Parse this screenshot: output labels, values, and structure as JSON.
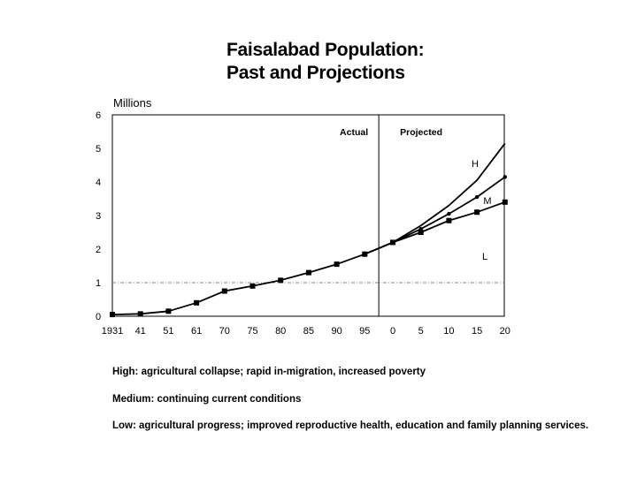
{
  "title_line1": "Faisalabad Population:",
  "title_line2": "Past and Projections",
  "chart_data": {
    "type": "line",
    "title": "Faisalabad Population: Past and Projections",
    "ylabel": "Millions",
    "xlabel": "",
    "ylim": [
      0,
      6
    ],
    "yticks": [
      0,
      1,
      2,
      3,
      4,
      5,
      6
    ],
    "categories": [
      "1931",
      "41",
      "51",
      "61",
      "70",
      "75",
      "80",
      "85",
      "90",
      "95",
      "0",
      "5",
      "10",
      "15",
      "20"
    ],
    "reference_line": 1,
    "divider_after": "95",
    "region_labels": {
      "actual": "Actual",
      "projected": "Projected"
    },
    "series": [
      {
        "name": "Actual",
        "values": [
          0.05,
          0.07,
          0.15,
          0.4,
          0.75,
          0.9,
          1.07,
          1.3,
          1.55,
          1.85,
          null,
          null,
          null,
          null,
          null
        ],
        "markers": "square"
      },
      {
        "name": "H",
        "values": [
          null,
          null,
          null,
          null,
          null,
          null,
          null,
          null,
          null,
          1.85,
          2.2,
          2.7,
          3.3,
          4.05,
          5.15
        ],
        "markers": "none"
      },
      {
        "name": "M",
        "values": [
          null,
          null,
          null,
          null,
          null,
          null,
          null,
          null,
          null,
          1.85,
          2.2,
          2.6,
          3.05,
          3.55,
          4.15
        ],
        "markers": "dot"
      },
      {
        "name": "L",
        "values": [
          null,
          null,
          null,
          null,
          null,
          null,
          null,
          null,
          null,
          1.85,
          2.2,
          2.5,
          2.85,
          3.1,
          3.4
        ],
        "markers": "square"
      }
    ],
    "series_labels": {
      "H": "H",
      "M": "M",
      "L": "L"
    }
  },
  "notes": {
    "high": "High:  agricultural collapse; rapid in-migration, increased poverty",
    "medium": "Medium:  continuing current conditions",
    "low": "Low:  agricultural progress; improved reproductive health, education and family planning services."
  }
}
